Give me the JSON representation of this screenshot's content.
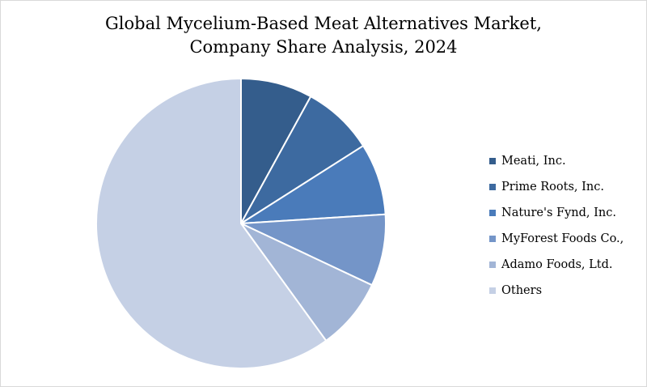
{
  "chart_data": {
    "type": "pie",
    "title": "Global Mycelium-Based Meat Alternatives Market,",
    "subtitle": "Company Share Analysis, 2024",
    "legend_position": "right",
    "start_angle_deg": 0,
    "direction": "clockwise",
    "slices": [
      {
        "label": "Meati, Inc.",
        "value": 8,
        "color": "#345d8c"
      },
      {
        "label": "Prime Roots, Inc.",
        "value": 8,
        "color": "#3d6aa0"
      },
      {
        "label": "Nature's Fynd, Inc.",
        "value": 8,
        "color": "#4a7bba"
      },
      {
        "label": "MyForest Foods Co.,",
        "value": 8,
        "color": "#7495c8"
      },
      {
        "label": "Adamo Foods, Ltd.",
        "value": 8,
        "color": "#a2b5d6"
      },
      {
        "label": "Others",
        "value": 60,
        "color": "#c5d0e5"
      }
    ]
  }
}
